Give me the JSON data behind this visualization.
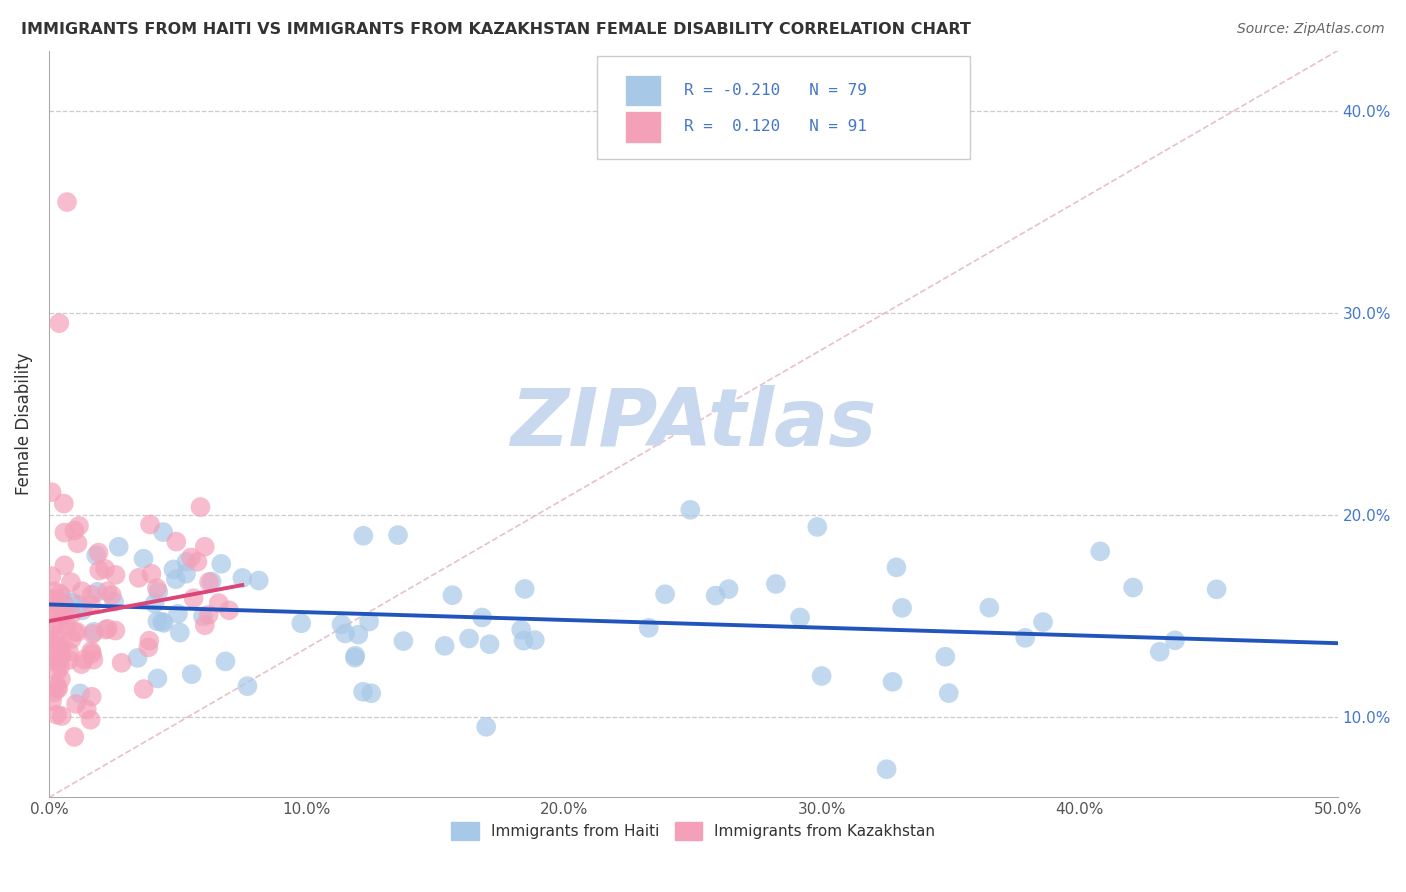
{
  "title": "IMMIGRANTS FROM HAITI VS IMMIGRANTS FROM KAZAKHSTAN FEMALE DISABILITY CORRELATION CHART",
  "source": "Source: ZipAtlas.com",
  "ylabel": "Female Disability",
  "xlim": [
    0.0,
    0.5
  ],
  "ylim": [
    0.06,
    0.43
  ],
  "xtick_vals": [
    0.0,
    0.1,
    0.2,
    0.3,
    0.4,
    0.5
  ],
  "xticklabels": [
    "0.0%",
    "10.0%",
    "20.0%",
    "30.0%",
    "40.0%",
    "50.0%"
  ],
  "ytick_vals_right": [
    0.1,
    0.2,
    0.3,
    0.4
  ],
  "yticklabels_right": [
    "10.0%",
    "20.0%",
    "30.0%",
    "40.0%"
  ],
  "ytick_vals_grid": [
    0.1,
    0.2,
    0.3,
    0.4
  ],
  "haiti_color": "#a8c8e8",
  "kazakhstan_color": "#f4a0b8",
  "haiti_line_color": "#2255bb",
  "kazakhstan_line_color": "#dd4477",
  "diag_line_color": "#e8b8c8",
  "haiti_R": -0.21,
  "haiti_N": 79,
  "kazakhstan_R": 0.12,
  "kazakhstan_N": 91,
  "watermark": "ZIPAtlas",
  "watermark_color": "#c8d8ee",
  "background_color": "#ffffff",
  "legend_box_color": "#cccccc",
  "right_axis_color": "#4477cc",
  "title_color": "#333333",
  "source_color": "#666666"
}
